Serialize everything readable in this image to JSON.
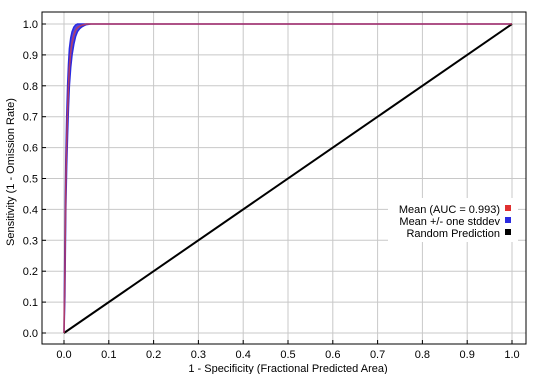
{
  "chart_data": {
    "type": "line",
    "title": "",
    "xlabel": "1 - Specificity (Fractional Predicted Area)",
    "ylabel": "Sensitivity (1 - Omission Rate)",
    "xlim": [
      0.0,
      1.0
    ],
    "ylim": [
      0.0,
      1.0
    ],
    "xticks": [
      "0.0",
      "0.1",
      "0.2",
      "0.3",
      "0.4",
      "0.5",
      "0.6",
      "0.7",
      "0.8",
      "0.9",
      "1.0"
    ],
    "yticks": [
      "0.0",
      "0.1",
      "0.2",
      "0.3",
      "0.4",
      "0.5",
      "0.6",
      "0.7",
      "0.8",
      "0.9",
      "1.0"
    ],
    "grid": true,
    "legend_position": "right-middle",
    "series": [
      {
        "name": "Mean (AUC = 0.993)",
        "color": "#e03030",
        "x": [
          0.0,
          0.002,
          0.004,
          0.006,
          0.008,
          0.01,
          0.012,
          0.015,
          0.018,
          0.022,
          0.026,
          0.03,
          0.035,
          0.04,
          0.045,
          0.05,
          0.06,
          1.0
        ],
        "y": [
          0.0,
          0.2,
          0.48,
          0.62,
          0.72,
          0.8,
          0.86,
          0.91,
          0.94,
          0.965,
          0.98,
          0.988,
          0.993,
          0.996,
          0.998,
          1.0,
          1.0,
          1.0
        ]
      },
      {
        "name": "Mean +/- one stddev",
        "color": "#2a2ae0",
        "upper_y": [
          0.0,
          0.3,
          0.56,
          0.7,
          0.8,
          0.87,
          0.92,
          0.955,
          0.975,
          0.99,
          0.997,
          1.0,
          1.0,
          1.0,
          1.0,
          1.0,
          1.0,
          1.0
        ],
        "lower_y": [
          0.0,
          0.12,
          0.4,
          0.54,
          0.64,
          0.73,
          0.8,
          0.86,
          0.9,
          0.935,
          0.96,
          0.975,
          0.985,
          0.991,
          0.995,
          0.998,
          1.0,
          1.0
        ]
      },
      {
        "name": "Random Prediction",
        "color": "#000000",
        "x": [
          0.0,
          1.0
        ],
        "y": [
          0.0,
          1.0
        ]
      }
    ]
  }
}
